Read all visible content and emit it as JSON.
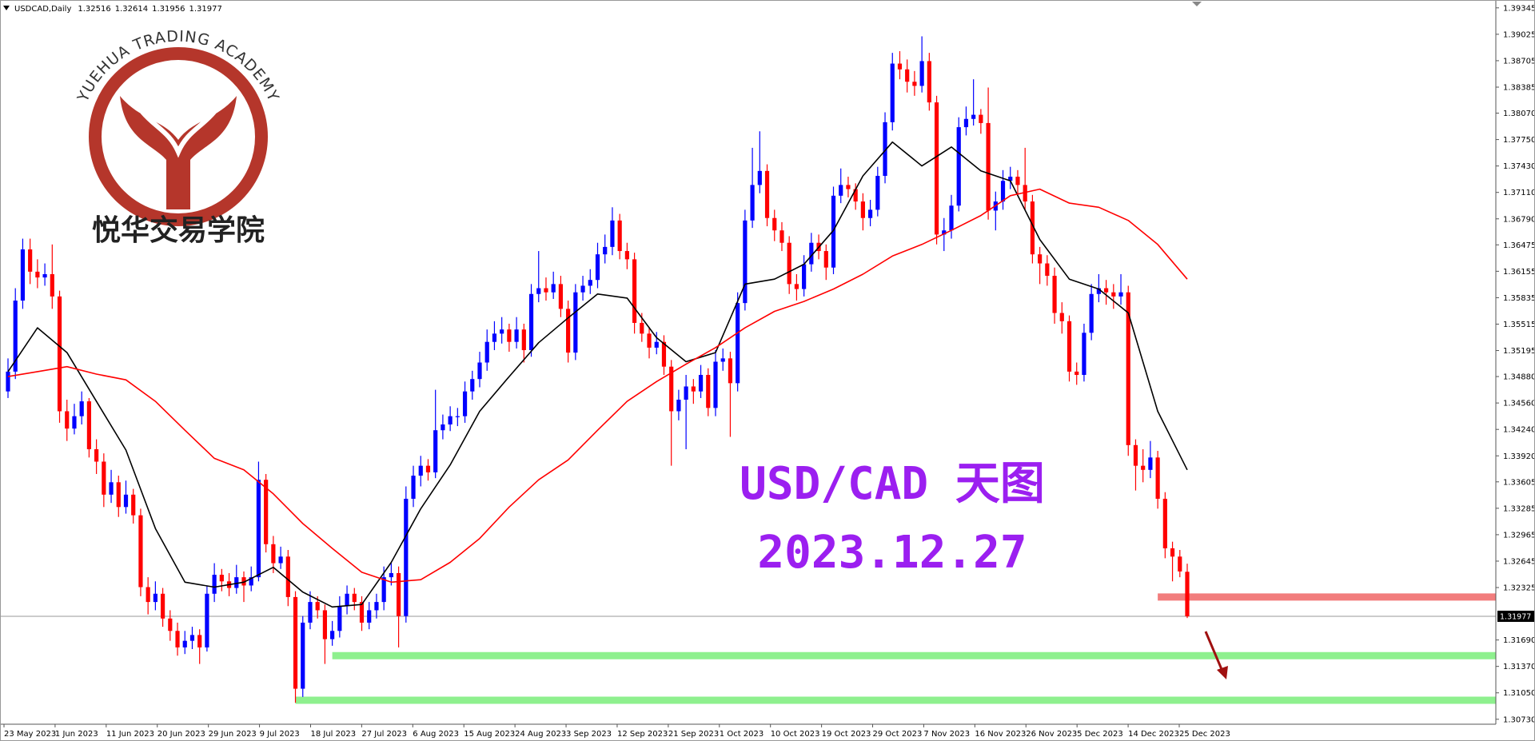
{
  "chart_data": {
    "type": "candlestick",
    "symbol": "USDCAD,Daily",
    "annotation_title": "USD/CAD 天图",
    "annotation_date": "2023.12.27",
    "logo_text": "YUEHUA TRADING ACADEMY",
    "logo_cn": "悦华交易学院",
    "up_color": "#0000ff",
    "down_color": "#ff0000",
    "ylim": [
      1.3067,
      1.3944
    ],
    "yticks": [
      1.39345,
      1.39025,
      1.38705,
      1.38385,
      {
        "value": 1.3807,
        "label": "1.38070"
      },
      {
        "value": 1.3775,
        "label": "1.37750"
      },
      {
        "value": 1.3743,
        "label": "1.37430"
      },
      {
        "value": 1.3711,
        "label": "1.37110"
      },
      {
        "value": 1.3679,
        "label": "1.36790"
      },
      1.36475,
      1.36155,
      1.35835,
      1.35515,
      1.35195,
      {
        "value": 1.3488,
        "label": "1.34880"
      },
      {
        "value": 1.3456,
        "label": "1.34560"
      },
      {
        "value": 1.3424,
        "label": "1.34240"
      },
      {
        "value": 1.3392,
        "label": "1.33920"
      },
      1.33605,
      1.33285,
      1.32965,
      1.32645,
      1.32325,
      {
        "value": 1.3169,
        "label": "1.31690"
      },
      {
        "value": 1.3137,
        "label": "1.31370"
      },
      {
        "value": 1.3105,
        "label": "1.31050"
      },
      {
        "value": 1.3073,
        "label": "1.30730"
      }
    ],
    "x_labels": [
      "23 May 2023",
      "1 Jun 2023",
      "11 Jun 2023",
      "20 Jun 2023",
      "29 Jun 2023",
      "9 Jul 2023",
      "18 Jul 2023",
      "27 Jul 2023",
      "6 Aug 2023",
      "15 Aug 2023",
      "24 Aug 2023",
      "3 Sep 2023",
      "12 Sep 2023",
      "21 Sep 2023",
      "1 Oct 2023",
      "10 Oct 2023",
      "19 Oct 2023",
      "29 Oct 2023",
      "7 Nov 2023",
      "16 Nov 2023",
      "26 Nov 2023",
      "5 Dec 2023",
      "14 Dec 2023",
      "25 Dec 2023"
    ],
    "ohlc": [
      [
        1.347,
        1.351,
        1.3462,
        1.3494
      ],
      [
        1.3494,
        1.3595,
        1.3485,
        1.358
      ],
      [
        1.358,
        1.3655,
        1.357,
        1.3642
      ],
      [
        1.3642,
        1.3655,
        1.36,
        1.3615
      ],
      [
        1.3615,
        1.363,
        1.3595,
        1.3608
      ],
      [
        1.3608,
        1.3625,
        1.3598,
        1.3612
      ],
      [
        1.3612,
        1.3648,
        1.357,
        1.3585
      ],
      [
        1.3585,
        1.3592,
        1.3432,
        1.3446
      ],
      [
        1.3446,
        1.346,
        1.341,
        1.3425
      ],
      [
        1.3425,
        1.3455,
        1.3418,
        1.344
      ],
      [
        1.344,
        1.347,
        1.343,
        1.3458
      ],
      [
        1.3458,
        1.3462,
        1.339,
        1.34
      ],
      [
        1.34,
        1.3412,
        1.337,
        1.3385
      ],
      [
        1.3385,
        1.3395,
        1.333,
        1.3345
      ],
      [
        1.3345,
        1.3375,
        1.3335,
        1.336
      ],
      [
        1.336,
        1.3368,
        1.3318,
        1.333
      ],
      [
        1.333,
        1.3362,
        1.3322,
        1.3345
      ],
      [
        1.3345,
        1.3352,
        1.331,
        1.332
      ],
      [
        1.332,
        1.3328,
        1.3222,
        1.3233
      ],
      [
        1.3233,
        1.3245,
        1.32,
        1.3215
      ],
      [
        1.3215,
        1.324,
        1.3205,
        1.3225
      ],
      [
        1.3225,
        1.3232,
        1.3185,
        1.3195
      ],
      [
        1.3195,
        1.3205,
        1.3168,
        1.318
      ],
      [
        1.318,
        1.319,
        1.315,
        1.316
      ],
      [
        1.316,
        1.318,
        1.3152,
        1.3168
      ],
      [
        1.3168,
        1.3185,
        1.3158,
        1.3175
      ],
      [
        1.3175,
        1.3182,
        1.314,
        1.316
      ],
      [
        1.316,
        1.3235,
        1.3155,
        1.3225
      ],
      [
        1.3225,
        1.3262,
        1.3215,
        1.3248
      ],
      [
        1.3248,
        1.3255,
        1.3228,
        1.324
      ],
      [
        1.324,
        1.325,
        1.3222,
        1.3232
      ],
      [
        1.3232,
        1.326,
        1.3225,
        1.3245
      ],
      [
        1.3245,
        1.3252,
        1.3215,
        1.3235
      ],
      [
        1.3235,
        1.3258,
        1.3228,
        1.3245
      ],
      [
        1.3245,
        1.3385,
        1.324,
        1.3363
      ],
      [
        1.3363,
        1.337,
        1.3275,
        1.3285
      ],
      [
        1.3285,
        1.3295,
        1.325,
        1.3262
      ],
      [
        1.3262,
        1.3282,
        1.3255,
        1.327
      ],
      [
        1.327,
        1.3278,
        1.321,
        1.3221
      ],
      [
        1.3221,
        1.3228,
        1.3093,
        1.311
      ],
      [
        1.311,
        1.3198,
        1.31,
        1.319
      ],
      [
        1.319,
        1.3228,
        1.3182,
        1.3215
      ],
      [
        1.3215,
        1.3222,
        1.3195,
        1.3205
      ],
      [
        1.3205,
        1.3212,
        1.314,
        1.317
      ],
      [
        1.317,
        1.3192,
        1.3162,
        1.318
      ],
      [
        1.318,
        1.3222,
        1.3172,
        1.321
      ],
      [
        1.321,
        1.3235,
        1.32,
        1.3225
      ],
      [
        1.3225,
        1.3232,
        1.3205,
        1.3215
      ],
      [
        1.3215,
        1.3222,
        1.318,
        1.319
      ],
      [
        1.319,
        1.3215,
        1.3182,
        1.3205
      ],
      [
        1.3205,
        1.3225,
        1.3195,
        1.3215
      ],
      [
        1.3215,
        1.3258,
        1.3205,
        1.3245
      ],
      [
        1.3245,
        1.3262,
        1.3235,
        1.325
      ],
      [
        1.325,
        1.3258,
        1.316,
        1.3198
      ],
      [
        1.3198,
        1.3355,
        1.319,
        1.334
      ],
      [
        1.334,
        1.338,
        1.333,
        1.3368
      ],
      [
        1.3368,
        1.3392,
        1.3355,
        1.338
      ],
      [
        1.338,
        1.3388,
        1.3362,
        1.3372
      ],
      [
        1.3372,
        1.3472,
        1.3365,
        1.3423
      ],
      [
        1.3423,
        1.3442,
        1.3412,
        1.343
      ],
      [
        1.343,
        1.3452,
        1.3422,
        1.344
      ],
      [
        1.344,
        1.345,
        1.3428,
        1.344
      ],
      [
        1.344,
        1.3482,
        1.3432,
        1.347
      ],
      [
        1.347,
        1.3495,
        1.346,
        1.3485
      ],
      [
        1.3485,
        1.3518,
        1.3475,
        1.3505
      ],
      [
        1.3505,
        1.3545,
        1.3495,
        1.353
      ],
      [
        1.353,
        1.3555,
        1.352,
        1.354
      ],
      [
        1.354,
        1.356,
        1.3528,
        1.3545
      ],
      [
        1.3545,
        1.3552,
        1.3518,
        1.353
      ],
      [
        1.353,
        1.356,
        1.3522,
        1.3545
      ],
      [
        1.3545,
        1.3552,
        1.3505,
        1.352
      ],
      [
        1.352,
        1.36,
        1.3512,
        1.3588
      ],
      [
        1.3588,
        1.364,
        1.3578,
        1.3595
      ],
      [
        1.3595,
        1.3608,
        1.358,
        1.359
      ],
      [
        1.359,
        1.3615,
        1.3582,
        1.36
      ],
      [
        1.36,
        1.361,
        1.356,
        1.357
      ],
      [
        1.357,
        1.358,
        1.3505,
        1.3517
      ],
      [
        1.3517,
        1.36,
        1.3508,
        1.359
      ],
      [
        1.359,
        1.361,
        1.358,
        1.3598
      ],
      [
        1.3598,
        1.3618,
        1.3588,
        1.3605
      ],
      [
        1.3605,
        1.365,
        1.3595,
        1.3636
      ],
      [
        1.3636,
        1.366,
        1.3625,
        1.3645
      ],
      [
        1.3645,
        1.3693,
        1.3635,
        1.3677
      ],
      [
        1.3677,
        1.3685,
        1.363,
        1.364
      ],
      [
        1.364,
        1.365,
        1.3618,
        1.363
      ],
      [
        1.363,
        1.3638,
        1.354,
        1.3553
      ],
      [
        1.3553,
        1.3565,
        1.353,
        1.354
      ],
      [
        1.354,
        1.3548,
        1.351,
        1.3523
      ],
      [
        1.3523,
        1.3542,
        1.3515,
        1.353
      ],
      [
        1.353,
        1.3538,
        1.349,
        1.35
      ],
      [
        1.35,
        1.3508,
        1.338,
        1.3446
      ],
      [
        1.3446,
        1.3472,
        1.3435,
        1.346
      ],
      [
        1.346,
        1.349,
        1.34,
        1.3476
      ],
      [
        1.3476,
        1.3485,
        1.3455,
        1.347
      ],
      [
        1.347,
        1.3502,
        1.3462,
        1.349
      ],
      [
        1.349,
        1.3498,
        1.344,
        1.345
      ],
      [
        1.345,
        1.352,
        1.344,
        1.3506
      ],
      [
        1.3506,
        1.3522,
        1.3495,
        1.351
      ],
      [
        1.351,
        1.3518,
        1.3415,
        1.348
      ],
      [
        1.348,
        1.359,
        1.347,
        1.3577
      ],
      [
        1.3577,
        1.369,
        1.3568,
        1.3677
      ],
      [
        1.3677,
        1.3765,
        1.3668,
        1.372
      ],
      [
        1.372,
        1.3785,
        1.371,
        1.3737
      ],
      [
        1.3737,
        1.3745,
        1.367,
        1.368
      ],
      [
        1.368,
        1.369,
        1.3652,
        1.3665
      ],
      [
        1.3665,
        1.3675,
        1.364,
        1.365
      ],
      [
        1.365,
        1.3658,
        1.3588,
        1.36
      ],
      [
        1.36,
        1.3612,
        1.358,
        1.3594
      ],
      [
        1.3594,
        1.3635,
        1.3585,
        1.3624
      ],
      [
        1.3624,
        1.3662,
        1.3615,
        1.365
      ],
      [
        1.365,
        1.366,
        1.363,
        1.364
      ],
      [
        1.364,
        1.3648,
        1.3605,
        1.362
      ],
      [
        1.362,
        1.3718,
        1.3612,
        1.3707
      ],
      [
        1.3707,
        1.374,
        1.3698,
        1.372
      ],
      [
        1.372,
        1.373,
        1.3705,
        1.3715
      ],
      [
        1.3715,
        1.3722,
        1.369,
        1.37
      ],
      [
        1.37,
        1.371,
        1.3665,
        1.368
      ],
      [
        1.368,
        1.3702,
        1.367,
        1.369
      ],
      [
        1.369,
        1.3742,
        1.3682,
        1.3731
      ],
      [
        1.3731,
        1.3808,
        1.3722,
        1.3796
      ],
      [
        1.3796,
        1.388,
        1.3786,
        1.3867
      ],
      [
        1.3867,
        1.3882,
        1.3848,
        1.386
      ],
      [
        1.386,
        1.3872,
        1.3832,
        1.3845
      ],
      [
        1.3845,
        1.3858,
        1.3828,
        1.384
      ],
      [
        1.384,
        1.39,
        1.3832,
        1.387
      ],
      [
        1.387,
        1.388,
        1.381,
        1.382
      ],
      [
        1.382,
        1.3828,
        1.3648,
        1.366
      ],
      [
        1.366,
        1.368,
        1.364,
        1.3665
      ],
      [
        1.3665,
        1.3708,
        1.3655,
        1.3695
      ],
      [
        1.3695,
        1.3802,
        1.3688,
        1.379
      ],
      [
        1.379,
        1.3815,
        1.378,
        1.38
      ],
      [
        1.38,
        1.3848,
        1.3792,
        1.3805
      ],
      [
        1.3805,
        1.3812,
        1.3782,
        1.3795
      ],
      [
        1.3795,
        1.3838,
        1.3678,
        1.3689
      ],
      [
        1.3689,
        1.3712,
        1.3665,
        1.37
      ],
      [
        1.37,
        1.3738,
        1.369,
        1.3725
      ],
      [
        1.3725,
        1.3742,
        1.3715,
        1.373
      ],
      [
        1.373,
        1.3738,
        1.3708,
        1.372
      ],
      [
        1.372,
        1.3765,
        1.369,
        1.37
      ],
      [
        1.37,
        1.3708,
        1.3625,
        1.3636
      ],
      [
        1.3636,
        1.3645,
        1.36,
        1.3625
      ],
      [
        1.3625,
        1.3635,
        1.3598,
        1.361
      ],
      [
        1.361,
        1.362,
        1.3552,
        1.3565
      ],
      [
        1.3565,
        1.3578,
        1.354,
        1.3555
      ],
      [
        1.3555,
        1.3562,
        1.3482,
        1.3494
      ],
      [
        1.3494,
        1.3505,
        1.3478,
        1.349
      ],
      [
        1.349,
        1.3552,
        1.3482,
        1.3541
      ],
      [
        1.3541,
        1.36,
        1.3532,
        1.3588
      ],
      [
        1.3588,
        1.3612,
        1.3578,
        1.3595
      ],
      [
        1.3595,
        1.3605,
        1.3575,
        1.359
      ],
      [
        1.359,
        1.36,
        1.357,
        1.3585
      ],
      [
        1.3585,
        1.3612,
        1.3575,
        1.359
      ],
      [
        1.359,
        1.3598,
        1.3392,
        1.3405
      ],
      [
        1.3405,
        1.3412,
        1.335,
        1.338
      ],
      [
        1.338,
        1.34,
        1.336,
        1.3375
      ],
      [
        1.3375,
        1.341,
        1.3365,
        1.339
      ],
      [
        1.339,
        1.3398,
        1.3328,
        1.334
      ],
      [
        1.334,
        1.3348,
        1.3268,
        1.328
      ],
      [
        1.328,
        1.3288,
        1.324,
        1.327
      ],
      [
        1.327,
        1.3278,
        1.3245,
        1.3252
      ],
      [
        1.32516,
        1.32614,
        1.31956,
        1.31977
      ]
    ],
    "ma": [
      {
        "color": "#000000",
        "x": [
          0,
          4,
          8,
          12,
          16,
          20,
          24,
          28,
          32,
          36,
          40,
          44,
          48,
          52,
          56,
          60,
          64,
          68,
          72,
          76,
          80,
          84,
          88,
          92,
          96,
          100,
          104,
          108,
          112,
          116,
          120,
          124,
          128,
          132,
          136,
          140,
          144,
          148,
          152,
          156,
          160
        ],
        "values": [
          1.3494,
          1.3547,
          1.3517,
          1.3458,
          1.3399,
          1.3304,
          1.3239,
          1.3233,
          1.3239,
          1.3257,
          1.3227,
          1.3209,
          1.3212,
          1.3263,
          1.3328,
          1.3381,
          1.3446,
          1.3488,
          1.3529,
          1.3559,
          1.3588,
          1.3583,
          1.3535,
          1.3506,
          1.3517,
          1.36,
          1.3606,
          1.3624,
          1.3665,
          1.3731,
          1.3772,
          1.3743,
          1.3766,
          1.3737,
          1.3725,
          1.3654,
          1.3606,
          1.3594,
          1.3565,
          1.3446,
          1.3375
        ]
      },
      {
        "color": "#ff0000",
        "x": [
          0,
          4,
          8,
          12,
          16,
          20,
          24,
          28,
          32,
          36,
          40,
          44,
          48,
          52,
          56,
          60,
          64,
          68,
          72,
          76,
          80,
          84,
          88,
          92,
          96,
          100,
          104,
          108,
          112,
          116,
          120,
          124,
          128,
          132,
          136,
          140,
          144,
          148,
          152,
          156,
          160
        ],
        "values": [
          1.3488,
          1.3494,
          1.35,
          1.3491,
          1.3484,
          1.3458,
          1.3423,
          1.3389,
          1.3375,
          1.3346,
          1.331,
          1.328,
          1.3251,
          1.3239,
          1.3242,
          1.3263,
          1.3292,
          1.333,
          1.3363,
          1.3387,
          1.3423,
          1.3458,
          1.3482,
          1.3503,
          1.3523,
          1.3547,
          1.3567,
          1.3579,
          1.3594,
          1.3612,
          1.3634,
          1.3648,
          1.3665,
          1.3683,
          1.3707,
          1.3715,
          1.3698,
          1.3693,
          1.3677,
          1.3648,
          1.3606
        ]
      }
    ],
    "levels": [
      {
        "value": 1.3221,
        "color": "#f27d7d",
        "start": 156
      },
      {
        "value": 1.315,
        "color": "#8ef08e",
        "start": 44
      },
      {
        "value": 1.3096,
        "color": "#8ef08e",
        "start": 39
      }
    ]
  }
}
